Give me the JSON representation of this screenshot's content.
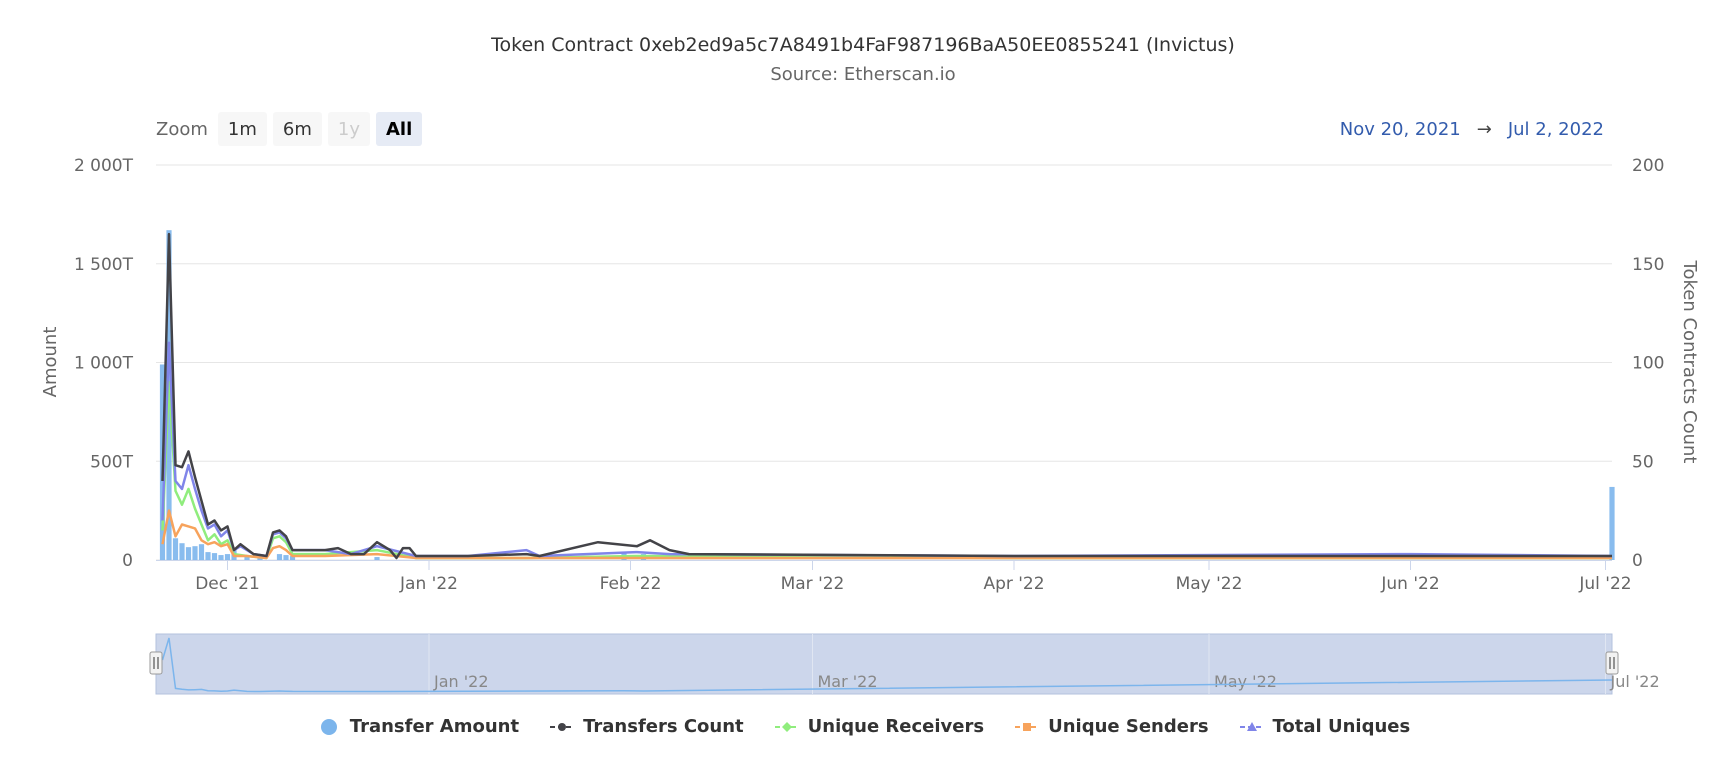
{
  "title": "Token Contract 0xeb2ed9a5c7A8491b4FaF987196BaA50EE0855241 (Invictus)",
  "subtitle": "Source: Etherscan.io",
  "zoom": {
    "label": "Zoom",
    "buttons": [
      {
        "label": "1m",
        "state": "normal"
      },
      {
        "label": "6m",
        "state": "normal"
      },
      {
        "label": "1y",
        "state": "disabled"
      },
      {
        "label": "All",
        "state": "active"
      }
    ]
  },
  "range": {
    "from": "Nov 20, 2021",
    "arrow": "→",
    "to": "Jul 2, 2022"
  },
  "colors": {
    "transfer_amount": "#7cb5ec",
    "transfers_count": "#434348",
    "unique_receivers": "#90ed7d",
    "unique_senders": "#f7a35c",
    "total_uniques": "#8085e9",
    "navigator_fill": "#ccd6eb",
    "grid": "#e6e6e6"
  },
  "chart_data": {
    "type": "line",
    "xlim": [
      "2021-11-20",
      "2022-07-02"
    ],
    "x_ticks": [
      "Dec '21",
      "Jan '22",
      "Feb '22",
      "Mar '22",
      "Apr '22",
      "May '22",
      "Jun '22",
      "Jul '22"
    ],
    "x_tick_dates": [
      "2021-12-01",
      "2022-01-01",
      "2022-02-01",
      "2022-03-01",
      "2022-04-01",
      "2022-05-01",
      "2022-06-01",
      "2022-07-01"
    ],
    "yaxis_left": {
      "title": "Amount",
      "ylim": [
        0,
        2000
      ],
      "unit": "T",
      "ticks": [
        "0",
        "500T",
        "1 000T",
        "1 500T",
        "2 000T"
      ]
    },
    "yaxis_right": {
      "title": "Token Contracts Count",
      "ylim": [
        0,
        200
      ],
      "ticks": [
        "0",
        "50",
        "100",
        "150",
        "200"
      ]
    },
    "grid": true,
    "legend_position": "bottom",
    "series": [
      {
        "name": "Transfer Amount",
        "type": "column",
        "axis": "left",
        "points": [
          [
            "2021-11-21",
            990
          ],
          [
            "2021-11-22",
            1670
          ],
          [
            "2021-11-23",
            110
          ],
          [
            "2021-11-24",
            85
          ],
          [
            "2021-11-25",
            65
          ],
          [
            "2021-11-26",
            70
          ],
          [
            "2021-11-27",
            80
          ],
          [
            "2021-11-28",
            40
          ],
          [
            "2021-11-29",
            35
          ],
          [
            "2021-11-30",
            25
          ],
          [
            "2021-12-01",
            30
          ],
          [
            "2021-12-02",
            60
          ],
          [
            "2021-12-04",
            20
          ],
          [
            "2021-12-06",
            15
          ],
          [
            "2021-12-09",
            30
          ],
          [
            "2021-12-10",
            25
          ],
          [
            "2021-12-11",
            20
          ],
          [
            "2021-12-24",
            15
          ],
          [
            "2022-01-31",
            40
          ],
          [
            "2022-02-03",
            30
          ],
          [
            "2022-07-02",
            370
          ]
        ]
      },
      {
        "name": "Transfers Count",
        "type": "line",
        "axis": "right",
        "points": [
          [
            "2021-11-21",
            40
          ],
          [
            "2021-11-22",
            165
          ],
          [
            "2021-11-23",
            48
          ],
          [
            "2021-11-24",
            47
          ],
          [
            "2021-11-25",
            55
          ],
          [
            "2021-11-26",
            42
          ],
          [
            "2021-11-27",
            30
          ],
          [
            "2021-11-28",
            18
          ],
          [
            "2021-11-29",
            20
          ],
          [
            "2021-11-30",
            15
          ],
          [
            "2021-12-01",
            17
          ],
          [
            "2021-12-02",
            5
          ],
          [
            "2021-12-03",
            8
          ],
          [
            "2021-12-05",
            3
          ],
          [
            "2021-12-07",
            2
          ],
          [
            "2021-12-08",
            14
          ],
          [
            "2021-12-09",
            15
          ],
          [
            "2021-12-10",
            12
          ],
          [
            "2021-12-11",
            5
          ],
          [
            "2021-12-13",
            5
          ],
          [
            "2021-12-16",
            5
          ],
          [
            "2021-12-18",
            6
          ],
          [
            "2021-12-20",
            3
          ],
          [
            "2021-12-22",
            3
          ],
          [
            "2021-12-24",
            9
          ],
          [
            "2021-12-26",
            5
          ],
          [
            "2021-12-27",
            1
          ],
          [
            "2021-12-28",
            6
          ],
          [
            "2021-12-29",
            6
          ],
          [
            "2021-12-30",
            2
          ],
          [
            "2022-01-07",
            2
          ],
          [
            "2022-01-16",
            3
          ],
          [
            "2022-01-18",
            2
          ],
          [
            "2022-01-27",
            9
          ],
          [
            "2022-02-02",
            7
          ],
          [
            "2022-02-04",
            10
          ],
          [
            "2022-02-07",
            5
          ],
          [
            "2022-02-10",
            3
          ],
          [
            "2022-04-01",
            2
          ],
          [
            "2022-07-02",
            2
          ]
        ]
      },
      {
        "name": "Unique Receivers",
        "type": "line",
        "axis": "right",
        "points": [
          [
            "2021-11-21",
            15
          ],
          [
            "2021-11-22",
            90
          ],
          [
            "2021-11-23",
            35
          ],
          [
            "2021-11-24",
            28
          ],
          [
            "2021-11-25",
            36
          ],
          [
            "2021-11-26",
            26
          ],
          [
            "2021-11-27",
            18
          ],
          [
            "2021-11-28",
            10
          ],
          [
            "2021-11-29",
            13
          ],
          [
            "2021-11-30",
            8
          ],
          [
            "2021-12-01",
            10
          ],
          [
            "2021-12-02",
            3
          ],
          [
            "2021-12-04",
            2
          ],
          [
            "2021-12-07",
            1
          ],
          [
            "2021-12-08",
            11
          ],
          [
            "2021-12-09",
            12
          ],
          [
            "2021-12-10",
            9
          ],
          [
            "2021-12-11",
            3
          ],
          [
            "2021-12-16",
            3
          ],
          [
            "2021-12-24",
            5
          ],
          [
            "2021-12-30",
            1
          ],
          [
            "2022-01-16",
            1
          ],
          [
            "2022-02-02",
            2
          ],
          [
            "2022-04-01",
            1
          ],
          [
            "2022-07-02",
            1
          ]
        ]
      },
      {
        "name": "Unique Senders",
        "type": "line",
        "axis": "right",
        "points": [
          [
            "2021-11-21",
            8
          ],
          [
            "2021-11-22",
            25
          ],
          [
            "2021-11-23",
            12
          ],
          [
            "2021-11-24",
            18
          ],
          [
            "2021-11-25",
            17
          ],
          [
            "2021-11-26",
            16
          ],
          [
            "2021-11-27",
            10
          ],
          [
            "2021-11-28",
            8
          ],
          [
            "2021-11-29",
            9
          ],
          [
            "2021-11-30",
            7
          ],
          [
            "2021-12-01",
            8
          ],
          [
            "2021-12-02",
            2
          ],
          [
            "2021-12-04",
            2
          ],
          [
            "2021-12-07",
            1
          ],
          [
            "2021-12-08",
            6
          ],
          [
            "2021-12-09",
            7
          ],
          [
            "2021-12-10",
            5
          ],
          [
            "2021-12-11",
            2
          ],
          [
            "2021-12-16",
            2
          ],
          [
            "2021-12-24",
            3
          ],
          [
            "2021-12-30",
            1
          ],
          [
            "2022-01-16",
            1
          ],
          [
            "2022-02-02",
            1
          ],
          [
            "2022-04-01",
            1
          ],
          [
            "2022-07-02",
            1
          ]
        ]
      },
      {
        "name": "Total Uniques",
        "type": "line",
        "axis": "right",
        "points": [
          [
            "2021-11-21",
            20
          ],
          [
            "2021-11-22",
            110
          ],
          [
            "2021-11-23",
            40
          ],
          [
            "2021-11-24",
            36
          ],
          [
            "2021-11-25",
            48
          ],
          [
            "2021-11-26",
            36
          ],
          [
            "2021-11-27",
            25
          ],
          [
            "2021-11-28",
            16
          ],
          [
            "2021-11-29",
            18
          ],
          [
            "2021-11-30",
            12
          ],
          [
            "2021-12-01",
            15
          ],
          [
            "2021-12-02",
            5
          ],
          [
            "2021-12-03",
            7
          ],
          [
            "2021-12-05",
            3
          ],
          [
            "2021-12-07",
            2
          ],
          [
            "2021-12-08",
            13
          ],
          [
            "2021-12-09",
            14
          ],
          [
            "2021-12-10",
            11
          ],
          [
            "2021-12-11",
            5
          ],
          [
            "2021-12-16",
            5
          ],
          [
            "2021-12-20",
            3
          ],
          [
            "2021-12-24",
            7
          ],
          [
            "2021-12-30",
            2
          ],
          [
            "2022-01-07",
            2
          ],
          [
            "2022-01-16",
            5
          ],
          [
            "2022-01-18",
            2
          ],
          [
            "2022-02-02",
            4
          ],
          [
            "2022-02-07",
            3
          ],
          [
            "2022-04-01",
            2
          ],
          [
            "2022-06-01",
            3
          ],
          [
            "2022-07-02",
            2
          ]
        ]
      }
    ],
    "navigator": {
      "x_ticks": [
        "Jan '22",
        "Mar '22",
        "May '22",
        "Jul '22"
      ],
      "x_tick_dates": [
        "2022-01-01",
        "2022-03-01",
        "2022-05-01",
        "2022-07-01"
      ]
    }
  }
}
